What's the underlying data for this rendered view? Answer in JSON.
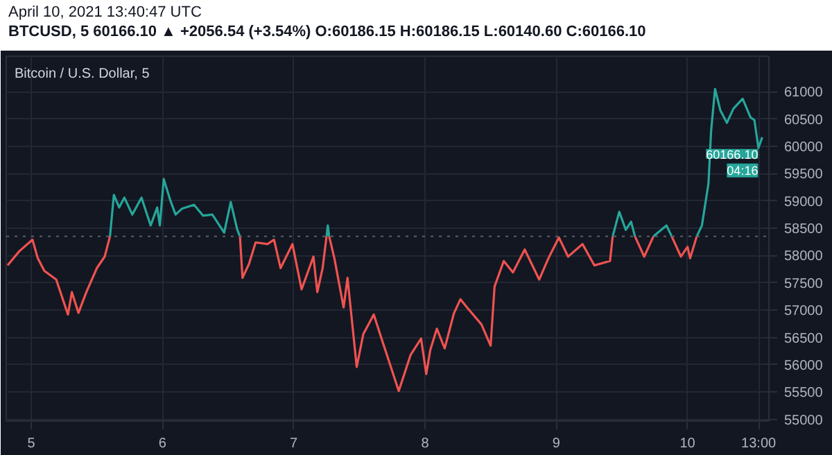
{
  "chart_data": {
    "type": "line",
    "title": "Bitcoin / U.S. Dollar, 5",
    "subtitle": "April 10, 2021 13:40:47 UTC",
    "annotations": [
      "BTCUSD, 5  60166.10 ▲ +2056.54 (+3.54%)  O:60186.15  H:60186.15  L:60140.60  C:60166.10",
      {
        "text": "60166.10",
        "x": "2021-04-10T13:40",
        "y": 60166.1
      },
      "04:16"
    ],
    "x": [
      "2021-04-04T19:41",
      "2021-04-04T21:50",
      "2021-04-05T00:14",
      "2021-04-05T01:12",
      "2021-04-05T02:24",
      "2021-04-05T04:34",
      "2021-04-05T06:43",
      "2021-04-05T07:26",
      "2021-04-05T08:38",
      "2021-04-05T10:05",
      "2021-04-05T12:00",
      "2021-04-05T13:26",
      "2021-04-05T14:24",
      "2021-04-05T15:07",
      "2021-04-05T16:05",
      "2021-04-05T17:02",
      "2021-04-05T18:29",
      "2021-04-05T20:10",
      "2021-04-05T21:50",
      "2021-04-05T23:02",
      "2021-04-05T23:31",
      "2021-04-06T00:14",
      "2021-04-06T01:26",
      "2021-04-06T02:24",
      "2021-04-06T03:36",
      "2021-04-06T05:46",
      "2021-04-06T07:26",
      "2021-04-06T09:07",
      "2021-04-06T11:17",
      "2021-04-06T12:29",
      "2021-04-06T13:41",
      "2021-04-06T14:10",
      "2021-04-06T14:38",
      "2021-04-06T15:50",
      "2021-04-06T17:02",
      "2021-04-06T19:12",
      "2021-04-06T20:24",
      "2021-04-06T21:36",
      "2021-04-06T23:46",
      "2021-04-07T01:26",
      "2021-04-07T03:36",
      "2021-04-07T04:19",
      "2021-04-07T05:17",
      "2021-04-07T06:00",
      "2021-04-07T06:14",
      "2021-04-07T06:29",
      "2021-04-07T07:26",
      "2021-04-07T09:07",
      "2021-04-07T09:50",
      "2021-04-07T11:31",
      "2021-04-07T12:43",
      "2021-04-07T14:38",
      "2021-04-07T16:19",
      "2021-04-07T19:12",
      "2021-04-07T21:22",
      "2021-04-07T23:17",
      "2021-04-08T00:14",
      "2021-04-08T00:58",
      "2021-04-08T02:10",
      "2021-04-08T03:36",
      "2021-04-08T05:17",
      "2021-04-08T06:29",
      "2021-04-08T07:41",
      "2021-04-08T10:19",
      "2021-04-08T12:00",
      "2021-04-08T12:43",
      "2021-04-08T14:24",
      "2021-04-08T16:05",
      "2021-04-08T18:14",
      "2021-04-08T20:53",
      "2021-04-08T22:34",
      "2021-04-09T00:29",
      "2021-04-09T02:10",
      "2021-04-09T04:48",
      "2021-04-09T06:58",
      "2021-04-09T09:50",
      "2021-04-09T10:19",
      "2021-04-09T11:31",
      "2021-04-09T12:43",
      "2021-04-09T13:41",
      "2021-04-09T14:24",
      "2021-04-09T16:05",
      "2021-04-09T17:46",
      "2021-04-09T20:10",
      "2021-04-09T21:07",
      "2021-04-09T22:48",
      "2021-04-10T00:00",
      "2021-04-10T00:29",
      "2021-04-10T01:41",
      "2021-04-10T02:38",
      "2021-04-10T03:50",
      "2021-04-10T04:19",
      "2021-04-10T05:02",
      "2021-04-10T06:00",
      "2021-04-10T07:12",
      "2021-04-10T08:24",
      "2021-04-10T10:05",
      "2021-04-10T11:31",
      "2021-04-10T12:14",
      "2021-04-10T12:58",
      "2021-04-10T13:40"
    ],
    "series": [
      {
        "color": "#ef5350",
        "values": [
          57820,
          58080,
          58290,
          57950,
          57720,
          57560,
          56920,
          57330,
          56950,
          57330,
          57770,
          57980,
          58350,
          null,
          null,
          null,
          null,
          null,
          null,
          null,
          null,
          null,
          null,
          null,
          null,
          null,
          null,
          null,
          null,
          null,
          null,
          58350,
          57590,
          57850,
          58240,
          58210,
          58290,
          57770,
          58210,
          57380,
          57980,
          57330,
          57770,
          58350,
          null,
          58350,
          57950,
          57050,
          57590,
          55960,
          56560,
          56920,
          56400,
          55520,
          56180,
          56480,
          55830,
          56270,
          56660,
          56300,
          56940,
          57200,
          57050,
          56740,
          56350,
          57430,
          57900,
          57690,
          58110,
          57560,
          57950,
          58330,
          57980,
          58210,
          57820,
          57900,
          58350,
          null,
          null,
          null,
          58350,
          57980,
          58350,
          null,
          58350,
          57980,
          58160,
          57950,
          58350,
          null,
          null,
          null,
          null,
          null,
          null,
          null,
          null,
          null,
          null,
          null,
          null
        ]
      },
      {
        "color": "#26a69a",
        "values": [
          null,
          null,
          null,
          null,
          null,
          null,
          null,
          null,
          null,
          null,
          null,
          null,
          58350,
          59110,
          58880,
          59060,
          58750,
          59060,
          58550,
          58880,
          58550,
          59400,
          59010,
          58750,
          58860,
          58930,
          58730,
          58750,
          58420,
          58980,
          58470,
          58350,
          null,
          null,
          null,
          null,
          null,
          null,
          null,
          null,
          null,
          null,
          null,
          58350,
          58550,
          58350,
          null,
          null,
          null,
          null,
          null,
          null,
          null,
          null,
          null,
          null,
          null,
          null,
          null,
          null,
          null,
          null,
          null,
          null,
          null,
          null,
          null,
          null,
          null,
          null,
          null,
          null,
          null,
          null,
          null,
          null,
          58350,
          58800,
          58470,
          58620,
          58350,
          null,
          58350,
          58550,
          58350,
          null,
          null,
          null,
          58350,
          58550,
          59320,
          60280,
          61050,
          60660,
          60430,
          60690,
          60870,
          60530,
          60480,
          59970,
          60166.1
        ]
      }
    ],
    "ref_lines": [
      {
        "axis": "y",
        "value": 58350,
        "line_style": "dotted",
        "color": "#5d606b"
      }
    ],
    "xlim": [
      "2021-04-04T19:26",
      "2021-04-10T14:53"
    ],
    "xticks": [
      {
        "value": "2021-04-05",
        "label": "5"
      },
      {
        "value": "2021-04-06",
        "label": "6"
      },
      {
        "value": "2021-04-07",
        "label": "7"
      },
      {
        "value": "2021-04-08",
        "label": "8"
      },
      {
        "value": "2021-04-09",
        "label": "9"
      },
      {
        "value": "2021-04-10",
        "label": "10"
      },
      {
        "value": "2021-04-10T13:00",
        "label": "13:00"
      }
    ],
    "ylim": [
      54970,
      61650
    ],
    "yticks": [
      55000,
      55500,
      56000,
      56500,
      57000,
      57500,
      58000,
      58500,
      59000,
      59500,
      60000,
      60500,
      61000
    ],
    "grid": true,
    "line_style": "solid",
    "marker": "none"
  }
}
